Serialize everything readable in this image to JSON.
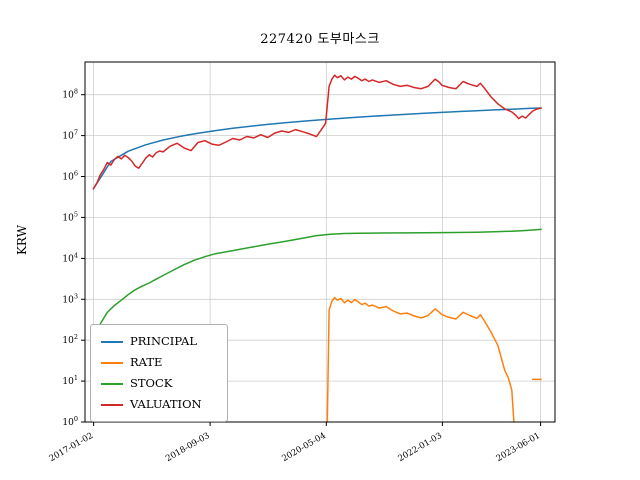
{
  "figure": {
    "title": "227420 도부마스크",
    "ylabel": "KRW"
  },
  "chart_data": {
    "type": "line",
    "title": "227420 도부마스크",
    "xlabel": "",
    "ylabel": "KRW",
    "yscale": "log",
    "grid": true,
    "legend_position": "lower left",
    "xlim": [
      2016.88,
      2023.62
    ],
    "ylim": [
      1,
      630000000
    ],
    "xticks": [
      {
        "t": 2017.003,
        "label": "2017-01-02"
      },
      {
        "t": 2018.674,
        "label": "2018-09-03"
      },
      {
        "t": 2020.34,
        "label": "2020-05-04"
      },
      {
        "t": 2022.005,
        "label": "2022-01-03"
      },
      {
        "t": 2023.414,
        "label": "2023-06-01"
      }
    ],
    "yticks": [
      {
        "exp": 0,
        "label": "10^0"
      },
      {
        "exp": 1,
        "label": "10^1"
      },
      {
        "exp": 2,
        "label": "10^2"
      },
      {
        "exp": 3,
        "label": "10^3"
      },
      {
        "exp": 4,
        "label": "10^4"
      },
      {
        "exp": 5,
        "label": "10^5"
      },
      {
        "exp": 6,
        "label": "10^6"
      },
      {
        "exp": 7,
        "label": "10^7"
      },
      {
        "exp": 8,
        "label": "10^8"
      }
    ],
    "series": [
      {
        "name": "PRINCIPAL",
        "color": "#1f77b4",
        "x": [
          2017.0,
          2017.25,
          2017.5,
          2017.75,
          2018.0,
          2018.25,
          2018.5,
          2018.75,
          2019.0,
          2019.25,
          2019.5,
          2019.75,
          2020.0,
          2020.25,
          2020.5,
          2020.75,
          2021.0,
          2021.25,
          2021.5,
          2021.75,
          2022.0,
          2022.25,
          2022.5,
          2022.75,
          2023.0,
          2023.25,
          2023.42
        ],
        "y": [
          500000,
          2330000,
          4150000,
          5980000,
          7800000,
          9630000,
          11450000,
          13280000,
          15100000,
          16930000,
          18750000,
          20580000,
          22400000,
          24230000,
          26050000,
          27880000,
          29700000,
          31530000,
          33350000,
          35180000,
          37000000,
          38830000,
          40650000,
          42480000,
          44300000,
          46130000,
          47370000
        ]
      },
      {
        "name": "RATE",
        "color": "#ff7f0e",
        "x": [
          2020.355,
          2020.38,
          2020.42,
          2020.46,
          2020.5,
          2020.55,
          2020.6,
          2020.65,
          2020.7,
          2020.75,
          2020.8,
          2020.85,
          2020.9,
          2020.95,
          2021.0,
          2021.1,
          2021.2,
          2021.3,
          2021.4,
          2021.5,
          2021.6,
          2021.7,
          2021.8,
          2021.9,
          2021.95,
          2022.0,
          2022.1,
          2022.2,
          2022.3,
          2022.4,
          2022.5,
          2022.55,
          2022.6,
          2022.7,
          2022.8,
          2022.9,
          2022.95,
          2023.0,
          2023.03,
          2023.1,
          2023.3,
          2023.35,
          2023.42
        ],
        "y": [
          1.0,
          540,
          890,
          1100,
          950,
          1050,
          820,
          950,
          830,
          980,
          860,
          740,
          800,
          680,
          720,
          610,
          660,
          520,
          440,
          460,
          390,
          350,
          400,
          580,
          500,
          420,
          360,
          330,
          480,
          400,
          340,
          420,
          310,
          160,
          75,
          18,
          12,
          6,
          1.0,
          null,
          11,
          11,
          11
        ]
      },
      {
        "name": "STOCK",
        "color": "#2ca02c",
        "x": [
          2017.0,
          2017.1,
          2017.2,
          2017.3,
          2017.4,
          2017.5,
          2017.6,
          2017.7,
          2017.8,
          2017.9,
          2018.0,
          2018.15,
          2018.3,
          2018.45,
          2018.6,
          2018.75,
          2019.0,
          2019.25,
          2019.5,
          2019.75,
          2020.0,
          2020.2,
          2020.4,
          2020.6,
          2020.8,
          2021.0,
          2021.5,
          2022.0,
          2022.5,
          2022.75,
          2023.0,
          2023.2,
          2023.42
        ],
        "y": [
          95,
          250,
          480,
          700,
          950,
          1300,
          1700,
          2100,
          2500,
          3100,
          3800,
          5200,
          7000,
          9000,
          11000,
          13000,
          15500,
          18500,
          22000,
          26000,
          31000,
          36000,
          39000,
          40500,
          41000,
          41500,
          42000,
          42500,
          43500,
          44500,
          46000,
          48000,
          51000
        ]
      },
      {
        "name": "VALUATION",
        "color": "#d62728",
        "x": [
          2017.0,
          2017.05,
          2017.1,
          2017.15,
          2017.2,
          2017.25,
          2017.3,
          2017.35,
          2017.4,
          2017.45,
          2017.5,
          2017.55,
          2017.6,
          2017.65,
          2017.7,
          2017.75,
          2017.8,
          2017.85,
          2017.9,
          2017.95,
          2018.0,
          2018.1,
          2018.2,
          2018.3,
          2018.4,
          2018.5,
          2018.6,
          2018.7,
          2018.8,
          2018.9,
          2019.0,
          2019.1,
          2019.2,
          2019.3,
          2019.4,
          2019.5,
          2019.6,
          2019.7,
          2019.8,
          2019.9,
          2020.0,
          2020.1,
          2020.2,
          2020.27,
          2020.33,
          2020.38,
          2020.42,
          2020.46,
          2020.5,
          2020.55,
          2020.6,
          2020.65,
          2020.7,
          2020.75,
          2020.8,
          2020.85,
          2020.9,
          2020.95,
          2021.0,
          2021.1,
          2021.2,
          2021.3,
          2021.4,
          2021.5,
          2021.6,
          2021.7,
          2021.8,
          2021.9,
          2021.95,
          2022.0,
          2022.1,
          2022.2,
          2022.3,
          2022.4,
          2022.5,
          2022.55,
          2022.6,
          2022.7,
          2022.8,
          2022.9,
          2023.0,
          2023.05,
          2023.1,
          2023.15,
          2023.2,
          2023.25,
          2023.3,
          2023.35,
          2023.42
        ],
        "y": [
          500000,
          700000,
          1100000,
          1500000,
          2200000,
          1900000,
          2600000,
          3100000,
          2700000,
          3300000,
          2900000,
          2400000,
          1800000,
          1600000,
          2100000,
          2800000,
          3400000,
          3000000,
          3800000,
          4200000,
          4000000,
          5500000,
          6500000,
          5000000,
          4300000,
          6800000,
          7500000,
          6200000,
          5800000,
          7000000,
          8500000,
          7800000,
          9500000,
          8800000,
          10500000,
          9000000,
          11500000,
          13000000,
          12000000,
          14000000,
          12500000,
          11000000,
          9500000,
          14000000,
          20000000,
          160000000,
          240000000,
          300000000,
          260000000,
          290000000,
          230000000,
          270000000,
          240000000,
          280000000,
          250000000,
          220000000,
          240000000,
          210000000,
          230000000,
          200000000,
          220000000,
          180000000,
          160000000,
          170000000,
          150000000,
          140000000,
          160000000,
          240000000,
          210000000,
          170000000,
          150000000,
          140000000,
          210000000,
          180000000,
          160000000,
          190000000,
          150000000,
          90000000,
          60000000,
          45000000,
          38000000,
          32000000,
          26000000,
          30000000,
          27000000,
          33000000,
          40000000,
          44000000,
          47000000
        ]
      }
    ]
  }
}
